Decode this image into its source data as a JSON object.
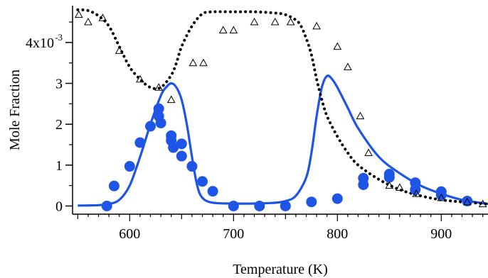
{
  "chart_data": {
    "type": "scatter",
    "title": "",
    "xlabel": "Temperature (K)",
    "ylabel": "Mole Fraction",
    "xlim": [
      545,
      945
    ],
    "ylim": [
      -0.0002,
      0.0049
    ],
    "x_ticks": [
      600,
      700,
      800,
      900
    ],
    "x_tick_labels": [
      "600",
      "700",
      "800",
      "900"
    ],
    "y_ticks": [
      0,
      0.001,
      0.002,
      0.003,
      0.004
    ],
    "y_tick_labels": [
      "0",
      "1",
      "2",
      "3",
      "4x10"
    ],
    "y_tick_exponent": "-3",
    "grid": false,
    "legend": "none",
    "colors": {
      "blue": "#1f55e6",
      "black": "#000000"
    },
    "series": [
      {
        "style": "blue-solid-line",
        "x": [
          550,
          570,
          580,
          590,
          600,
          610,
          620,
          630,
          635,
          640,
          645,
          650,
          655,
          660,
          665,
          670,
          680,
          700,
          720,
          740,
          750,
          760,
          770,
          775,
          780,
          785,
          790,
          795,
          800,
          810,
          820,
          840,
          860,
          880,
          900,
          920,
          945
        ],
        "y": [
          1e-05,
          2e-05,
          5e-05,
          0.00015,
          0.0005,
          0.0012,
          0.002,
          0.0027,
          0.0029,
          0.003,
          0.0029,
          0.0026,
          0.002,
          0.0012,
          0.0005,
          0.0002,
          8e-05,
          6e-05,
          6e-05,
          8e-05,
          0.00012,
          0.00025,
          0.0007,
          0.0013,
          0.0022,
          0.0029,
          0.00318,
          0.0031,
          0.0029,
          0.0024,
          0.0019,
          0.0012,
          0.0008,
          0.0005,
          0.0003,
          0.00015,
          5e-05
        ]
      },
      {
        "style": "black-dotted-line",
        "x": [
          550,
          560,
          570,
          580,
          590,
          600,
          610,
          620,
          630,
          640,
          645,
          650,
          660,
          670,
          680,
          700,
          720,
          740,
          750,
          760,
          765,
          770,
          775,
          780,
          785,
          790,
          800,
          810,
          820,
          840,
          860,
          880,
          900,
          920,
          945
        ],
        "y": [
          0.0048,
          0.00478,
          0.00465,
          0.0044,
          0.0039,
          0.0034,
          0.0031,
          0.0029,
          0.0029,
          0.0032,
          0.0035,
          0.0039,
          0.0044,
          0.0047,
          0.00475,
          0.00475,
          0.00475,
          0.00472,
          0.00468,
          0.00455,
          0.0044,
          0.0041,
          0.0037,
          0.0031,
          0.0026,
          0.0022,
          0.0017,
          0.0013,
          0.001,
          0.00065,
          0.0004,
          0.00025,
          0.00015,
          0.0001,
          5e-05
        ]
      },
      {
        "style": "blue-filled-circles",
        "x": [
          578,
          585,
          600,
          610,
          620,
          628,
          628,
          630,
          640,
          640,
          642,
          650,
          650,
          660,
          670,
          680,
          700,
          725,
          750,
          775,
          800,
          825,
          825,
          850,
          850,
          875,
          875,
          900,
          900,
          925
        ],
        "y": [
          0.0,
          0.00049,
          0.00097,
          0.00155,
          0.00195,
          0.0022,
          0.00238,
          0.00203,
          0.00172,
          0.0016,
          0.00143,
          0.00152,
          0.00122,
          0.00097,
          0.0006,
          0.00036,
          0.0,
          0.0,
          0.0,
          0.0001,
          0.00018,
          0.00068,
          0.00052,
          0.00078,
          0.0007,
          0.00057,
          0.0004,
          0.00035,
          0.00027,
          0.00012
        ]
      },
      {
        "style": "black-open-triangles",
        "x": [
          551,
          560,
          574,
          590,
          610,
          628,
          640,
          661,
          671,
          690,
          700,
          720,
          740,
          755,
          780,
          800,
          810,
          822,
          830,
          850,
          860,
          876,
          900,
          925,
          940
        ],
        "y": [
          0.00468,
          0.0045,
          0.0046,
          0.0038,
          0.0031,
          0.0029,
          0.0026,
          0.0035,
          0.0035,
          0.0043,
          0.0043,
          0.0045,
          0.0045,
          0.0045,
          0.0044,
          0.0039,
          0.0034,
          0.0022,
          0.0013,
          0.0005,
          0.00045,
          0.0003,
          0.0002,
          0.0001,
          5e-05
        ]
      }
    ]
  }
}
